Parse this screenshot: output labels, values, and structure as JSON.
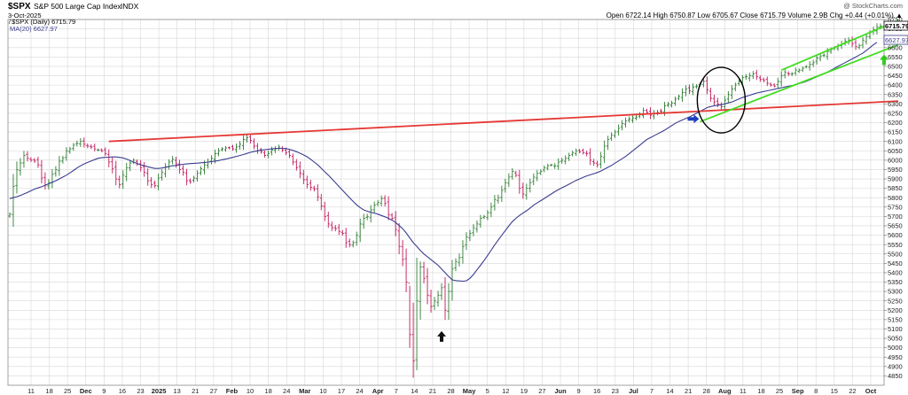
{
  "header": {
    "symbol": "$SPX",
    "name": "S&P 500 Large Cap Index",
    "exchange": "INDX",
    "date": "3-Oct-2025",
    "credit": "@ StockCharts.com",
    "quote": "Open 6722.14  High 6750.87  Low 6705.67  Close 6715.79  Volume 2.9B  Chg +0.44 (+0.01%) ▲"
  },
  "legend": [
    {
      "label": "̸ $SPX (Daily) 6715.79",
      "color": "#000000"
    },
    {
      "label": "MA(20) 6627.97",
      "color": "#3a3d8f"
    }
  ],
  "price_tags": [
    "6715.79",
    "6627.97"
  ],
  "chart_data": {
    "type": "line",
    "title": "$SPX S&P 500 Large Cap Index INDX",
    "ylim": [
      4800,
      6750
    ],
    "y_ticks": [
      4850,
      4900,
      4950,
      5000,
      5050,
      5100,
      5150,
      5200,
      5250,
      5300,
      5350,
      5400,
      5450,
      5500,
      5550,
      5600,
      5650,
      5700,
      5750,
      5800,
      5850,
      5900,
      5950,
      6000,
      6050,
      6100,
      6150,
      6200,
      6250,
      6300,
      6350,
      6400,
      6450,
      6500,
      6550,
      6600,
      6650,
      6700,
      6750
    ],
    "x_ticks": [
      {
        "label": "11",
        "bold": false
      },
      {
        "label": "18",
        "bold": false
      },
      {
        "label": "25",
        "bold": false
      },
      {
        "label": "Dec",
        "bold": true
      },
      {
        "label": "9",
        "bold": false
      },
      {
        "label": "16",
        "bold": false
      },
      {
        "label": "23",
        "bold": false
      },
      {
        "label": "2025",
        "bold": true
      },
      {
        "label": "13",
        "bold": false
      },
      {
        "label": "21",
        "bold": false
      },
      {
        "label": "27",
        "bold": false
      },
      {
        "label": "Feb",
        "bold": true
      },
      {
        "label": "10",
        "bold": false
      },
      {
        "label": "18",
        "bold": false
      },
      {
        "label": "24",
        "bold": false
      },
      {
        "label": "Mar",
        "bold": true
      },
      {
        "label": "10",
        "bold": false
      },
      {
        "label": "17",
        "bold": false
      },
      {
        "label": "24",
        "bold": false
      },
      {
        "label": "Apr",
        "bold": true
      },
      {
        "label": "7",
        "bold": false
      },
      {
        "label": "14",
        "bold": false
      },
      {
        "label": "21",
        "bold": false
      },
      {
        "label": "28",
        "bold": false
      },
      {
        "label": "May",
        "bold": true
      },
      {
        "label": "5",
        "bold": false
      },
      {
        "label": "12",
        "bold": false
      },
      {
        "label": "19",
        "bold": false
      },
      {
        "label": "27",
        "bold": false
      },
      {
        "label": "Jun",
        "bold": true
      },
      {
        "label": "9",
        "bold": false
      },
      {
        "label": "16",
        "bold": false
      },
      {
        "label": "23",
        "bold": false
      },
      {
        "label": "Jul",
        "bold": true
      },
      {
        "label": "7",
        "bold": false
      },
      {
        "label": "14",
        "bold": false
      },
      {
        "label": "21",
        "bold": false
      },
      {
        "label": "28",
        "bold": false
      },
      {
        "label": "Aug",
        "bold": true
      },
      {
        "label": "11",
        "bold": false
      },
      {
        "label": "18",
        "bold": false
      },
      {
        "label": "25",
        "bold": false
      },
      {
        "label": "Sep",
        "bold": true
      },
      {
        "label": "8",
        "bold": false
      },
      {
        "label": "15",
        "bold": false
      },
      {
        "label": "22",
        "bold": false
      },
      {
        "label": "Oct",
        "bold": true
      }
    ],
    "series": [
      {
        "name": "$SPX (Daily)",
        "kind": "ohlc",
        "color_up": "#2e7d32",
        "color_down": "#c2185b",
        "close": [
          5712,
          5860,
          5950,
          5985,
          6025,
          6010,
          6000,
          5995,
          5975,
          5905,
          5870,
          5880,
          5925,
          5950,
          5995,
          6010,
          6050,
          6060,
          6080,
          6090,
          6100,
          6085,
          6075,
          6070,
          6060,
          6055,
          6050,
          6035,
          5990,
          5955,
          5900,
          5870,
          5920,
          5960,
          5985,
          6000,
          5980,
          5960,
          5935,
          5890,
          5870,
          5865,
          5905,
          5935,
          5965,
          5990,
          6005,
          5980,
          5950,
          5935,
          5890,
          5885,
          5905,
          5930,
          5955,
          5975,
          5990,
          6010,
          6035,
          6050,
          6060,
          6065,
          6065,
          6060,
          6070,
          6085,
          6110,
          6120,
          6105,
          6075,
          6050,
          6045,
          6025,
          6035,
          6055,
          6060,
          6070,
          6055,
          6040,
          6025,
          5990,
          5960,
          5930,
          5895,
          5870,
          5855,
          5845,
          5805,
          5755,
          5700,
          5660,
          5640,
          5635,
          5620,
          5610,
          5560,
          5550,
          5560,
          5600,
          5660,
          5690,
          5700,
          5735,
          5760,
          5775,
          5795,
          5770,
          5710,
          5690,
          5630,
          5540,
          5470,
          5350,
          5070,
          4930,
          5250,
          5430,
          5370,
          5280,
          5220,
          5250,
          5280,
          5320,
          5200,
          5300,
          5420,
          5460,
          5480,
          5540,
          5590,
          5610,
          5640,
          5660,
          5690,
          5700,
          5720,
          5750,
          5790,
          5800,
          5840,
          5880,
          5910,
          5940,
          5920,
          5850,
          5820,
          5850,
          5880,
          5910,
          5930,
          5940,
          5960,
          5970,
          5975,
          5970,
          5990,
          6000,
          6010,
          6025,
          6040,
          6050,
          6045,
          6040,
          6035,
          6000,
          5985,
          5975,
          6020,
          6075,
          6110,
          6135,
          6150,
          6170,
          6195,
          6210,
          6220,
          6225,
          6230,
          6245,
          6265,
          6255,
          6240,
          6250,
          6255,
          6260,
          6290,
          6300,
          6305,
          6325,
          6340,
          6360,
          6380,
          6370,
          6390,
          6395,
          6405,
          6420,
          6375,
          6330,
          6310,
          6300,
          6285,
          6320,
          6350,
          6380,
          6400,
          6420,
          6440,
          6445,
          6450,
          6460,
          6445,
          6430,
          6425,
          6410,
          6400,
          6395,
          6420,
          6450,
          6470,
          6460,
          6460,
          6480,
          6480,
          6490,
          6500,
          6510,
          6520,
          6545,
          6555,
          6560,
          6580,
          6590,
          6600,
          6610,
          6620,
          6635,
          6640,
          6620,
          6605,
          6610,
          6640,
          6660,
          6680,
          6695,
          6710,
          6715
        ]
      },
      {
        "name": "MA(20)",
        "kind": "line",
        "color": "#3a3d8f",
        "values": [
          5795,
          5800,
          5805,
          5812,
          5820,
          5828,
          5837,
          5846,
          5852,
          5858,
          5866,
          5874,
          5882,
          5890,
          5900,
          5910,
          5920,
          5932,
          5945,
          5958,
          5970,
          5980,
          5988,
          5996,
          6003,
          6010,
          6013,
          6015,
          6016,
          6017,
          6017,
          6015,
          6012,
          6006,
          5998,
          5990,
          5982,
          5975,
          5970,
          5965,
          5960,
          5956,
          5956,
          5958,
          5962,
          5966,
          5970,
          5972,
          5975,
          5978,
          5980,
          5982,
          5983,
          5984,
          5986,
          5988,
          5990,
          5992,
          5995,
          5998,
          6002,
          6006,
          6010,
          6015,
          6020,
          6025,
          6030,
          6036,
          6042,
          6046,
          6050,
          6053,
          6056,
          6058,
          6060,
          6062,
          6063,
          6063,
          6062,
          6058,
          6052,
          6045,
          6037,
          6028,
          6018,
          6005,
          5990,
          5975,
          5957,
          5938,
          5920,
          5900,
          5880,
          5860,
          5840,
          5820,
          5800,
          5780,
          5762,
          5747,
          5735,
          5728,
          5722,
          5718,
          5712,
          5705,
          5698,
          5690,
          5680,
          5668,
          5652,
          5635,
          5612,
          5585,
          5560,
          5540,
          5518,
          5500,
          5485,
          5470,
          5455,
          5440,
          5420,
          5400,
          5380,
          5362,
          5358,
          5356,
          5355,
          5357,
          5370,
          5390,
          5415,
          5440,
          5465,
          5492,
          5520,
          5548,
          5575,
          5600,
          5625,
          5650,
          5672,
          5690,
          5705,
          5718,
          5730,
          5745,
          5760,
          5772,
          5784,
          5796,
          5808,
          5820,
          5832,
          5843,
          5853,
          5862,
          5872,
          5882,
          5892,
          5900,
          5908,
          5916,
          5922,
          5928,
          5934,
          5942,
          5952,
          5962,
          5972,
          5984,
          5996,
          6008,
          6020,
          6035,
          6050,
          6065,
          6080,
          6095,
          6110,
          6120,
          6130,
          6140,
          6150,
          6160,
          6172,
          6184,
          6196,
          6206,
          6214,
          6222,
          6230,
          6240,
          6250,
          6260,
          6270,
          6280,
          6286,
          6290,
          6293,
          6296,
          6300,
          6305,
          6310,
          6318,
          6326,
          6334,
          6340,
          6346,
          6352,
          6358,
          6362,
          6366,
          6370,
          6374,
          6378,
          6382,
          6386,
          6390,
          6394,
          6398,
          6402,
          6408,
          6414,
          6420,
          6428,
          6436,
          6444,
          6452,
          6460,
          6470,
          6480,
          6490,
          6500,
          6510,
          6520,
          6530,
          6540,
          6550,
          6560,
          6570,
          6585,
          6600,
          6615,
          6628
        ]
      }
    ],
    "annotations": [
      {
        "kind": "trendline",
        "color": "#e53935",
        "from": {
          "i": 28,
          "y": 6100
        },
        "to": {
          "i": 251,
          "y": 6315
        }
      },
      {
        "kind": "trendline",
        "color": "#44dd22",
        "from": {
          "i": 218,
          "y": 6480
        },
        "to": {
          "i": 251,
          "y": 6745
        }
      },
      {
        "kind": "trendline",
        "color": "#44dd22",
        "from": {
          "i": 195,
          "y": 6205
        },
        "to": {
          "i": 251,
          "y": 6615
        }
      },
      {
        "kind": "ellipse",
        "color": "#000000",
        "center": {
          "i": 201,
          "y": 6320
        }
      },
      {
        "kind": "arrow",
        "direction": "right",
        "color": "#1f3fbf",
        "at": {
          "i": 193,
          "y": 6220
        }
      },
      {
        "kind": "arrow",
        "direction": "up",
        "color": "#111111",
        "at": {
          "i": 122,
          "y": 5060
        }
      },
      {
        "kind": "arrow",
        "direction": "up",
        "color": "#33cc22",
        "at": {
          "i": 247,
          "y": 6535
        }
      }
    ]
  }
}
